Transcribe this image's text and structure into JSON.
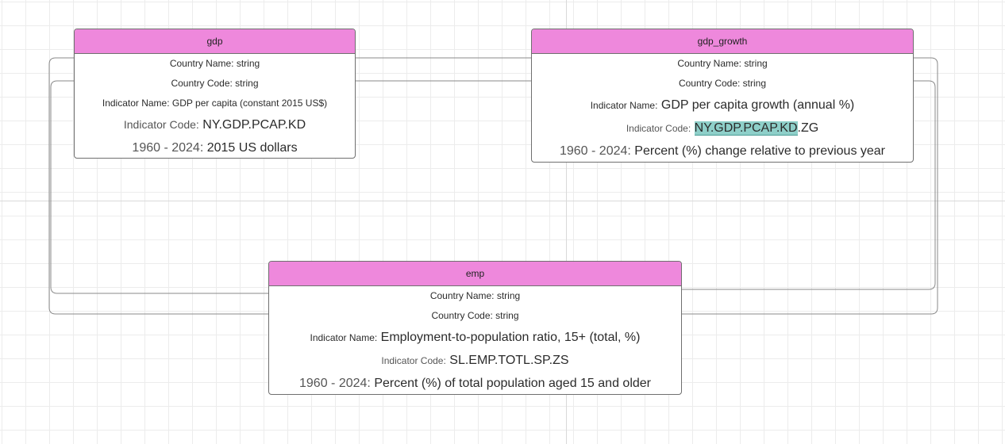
{
  "tables": {
    "gdp": {
      "title": "gdp",
      "field1": "Country Name: string",
      "field2": "Country Code: string",
      "field3": "Indicator Name: GDP per capita  (constant 2015 US$)",
      "field4_label": "Indicator Code:",
      "field4_value": "NY.GDP.PCAP.KD",
      "field5_label": "1960 - 2024:",
      "field5_value": "2015 US dollars"
    },
    "gdp_growth": {
      "title": "gdp_growth",
      "field1": "Country Name: string",
      "field2": "Country Code: string",
      "field3_label": "Indicator Name:",
      "field3_value": "GDP per capita growth (annual %)",
      "field4_label": "Indicator Code:",
      "field4_value_highlight": "NY.GDP.PCAP.KD",
      "field4_value_rest": ".ZG",
      "field5_label": "1960 - 2024:",
      "field5_value": "Percent (%) change relative to previous year"
    },
    "emp": {
      "title": "emp",
      "field1": "Country Name: string",
      "field2": "Country Code: string",
      "field3_label": "Indicator Name:",
      "field3_value": "Employment-to-population ratio, 15+ (total, %)",
      "field4_label": "Indicator Code:",
      "field4_value": "SL.EMP.TOTL.SP.ZS",
      "field5_label": "1960 - 2024:",
      "field5_value": "Percent (%) of total population aged 15 and older"
    }
  },
  "colors": {
    "header": "#ee88dc",
    "highlight": "#8ecfc9"
  }
}
